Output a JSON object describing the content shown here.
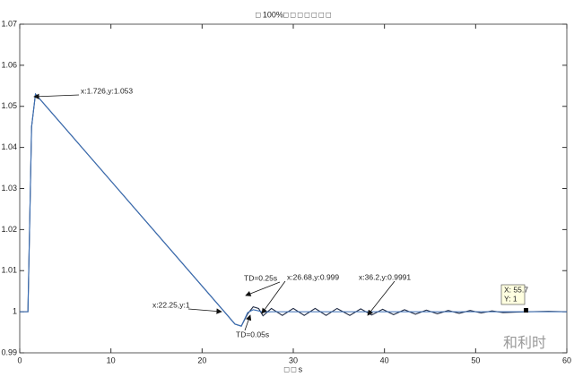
{
  "chart_data": {
    "type": "line",
    "title": "□ 100%□ □ □ □ □ □ □",
    "x_label": "□ □ s",
    "x": [
      0,
      0.9,
      1.3,
      1.726,
      22.25,
      23.6,
      24.3,
      25,
      25.6,
      26.2,
      26.68,
      27.6,
      28.8,
      30,
      31.2,
      32.4,
      33.6,
      34.8,
      36.2,
      37.4,
      38.6,
      39.8,
      41,
      42.2,
      43.4,
      44.6,
      45.8,
      47,
      48.2,
      49.4,
      50.6,
      51.8,
      53,
      55.7,
      58,
      60
    ],
    "series": [
      {
        "color": "#1f2a44",
        "values": [
          1,
          1,
          1.045,
          1.053,
          1.0005,
          0.997,
          0.9965,
          0.9995,
          1.0012,
          1.0008,
          0.999,
          1.0008,
          0.9991,
          1.0008,
          0.9991,
          1.0008,
          0.9991,
          1.0008,
          0.9991,
          1.0007,
          0.9992,
          1.0006,
          0.9993,
          1.0005,
          0.9994,
          1.0004,
          0.9995,
          1.0003,
          0.9996,
          1.0003,
          0.9997,
          1.0002,
          0.9998,
          1,
          1.0001,
          1
        ]
      },
      {
        "color": "#3b6fb6",
        "values": [
          1,
          1,
          1.045,
          1.053,
          1.0005,
          0.997,
          0.9965,
          0.9998,
          1.0005,
          1.0002,
          0.9999,
          1,
          1,
          1,
          1,
          1,
          1,
          1,
          1,
          1,
          1,
          1,
          1,
          1,
          1,
          1,
          1,
          1,
          1,
          1,
          1,
          1,
          1,
          1,
          1,
          1
        ]
      }
    ],
    "xlim": [
      0,
      60
    ],
    "xticks": [
      0,
      10,
      20,
      30,
      40,
      50,
      60
    ],
    "ylim": [
      0.99,
      1.07
    ],
    "yticks": [
      0.99,
      1,
      1.01,
      1.02,
      1.03,
      1.04,
      1.05,
      1.06,
      1.07
    ],
    "annotations": [
      "x:1.726,y:1.053",
      "x:22.25,y:1",
      "TD=0.25s",
      "TD=0.05s",
      "x:26.68,y:0.999",
      "x:36.2,y:0.9991"
    ],
    "datatip": [
      "X: 55.7",
      "Y: 1"
    ],
    "watermark": "和利时"
  }
}
